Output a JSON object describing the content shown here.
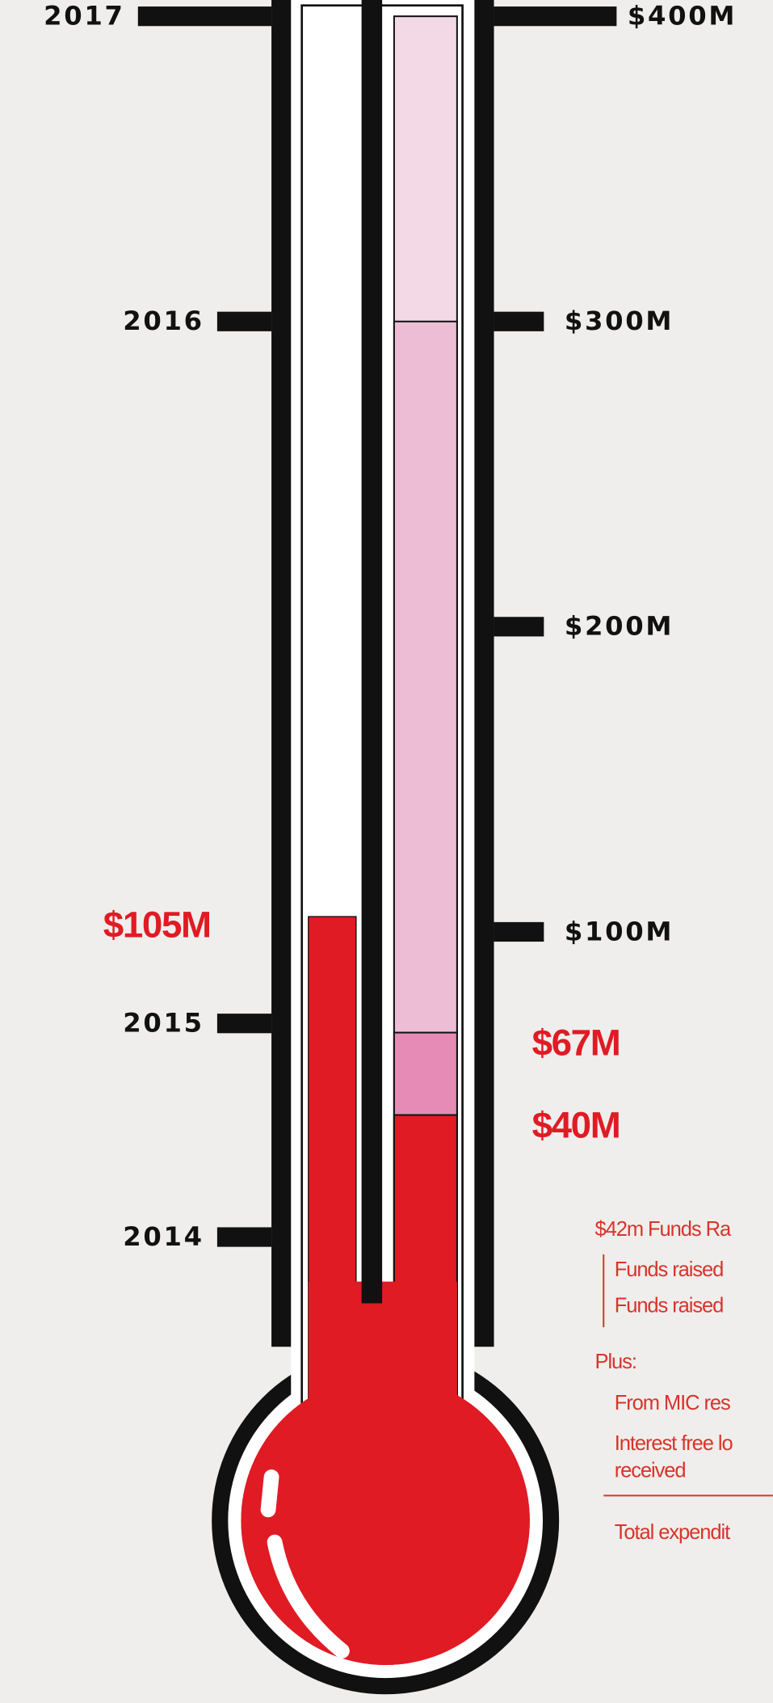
{
  "chart_data": {
    "type": "thermometer",
    "ylim": [
      0,
      400
    ],
    "yticks": [
      {
        "value": 100,
        "label": "$100M"
      },
      {
        "value": 200,
        "label": "$200M"
      },
      {
        "value": 300,
        "label": "$300M"
      },
      {
        "value": 400,
        "label": "$400M"
      }
    ],
    "year_ticks": [
      {
        "value": 0,
        "label": "2014"
      },
      {
        "value": 70,
        "label": "2015"
      },
      {
        "value": 300,
        "label": "2016"
      },
      {
        "value": 400,
        "label": "2017"
      }
    ],
    "series": [
      {
        "color": "#e01b24",
        "values": [
          105
        ],
        "value_labels": [
          "$105M"
        ]
      },
      {
        "colors": [
          "#e01b24",
          "#e58bb5",
          "#edbdd5",
          "#f3d9e6"
        ],
        "values": [
          40,
          67,
          300,
          400
        ],
        "value_labels": [
          "$40M",
          "$67M",
          null,
          null
        ]
      }
    ],
    "notes": [
      "$42m Funds Ra",
      "Funds raised",
      "Funds raised",
      "Plus:",
      "From MIC res",
      "Interest free lo",
      "received",
      "Total expendit"
    ]
  }
}
